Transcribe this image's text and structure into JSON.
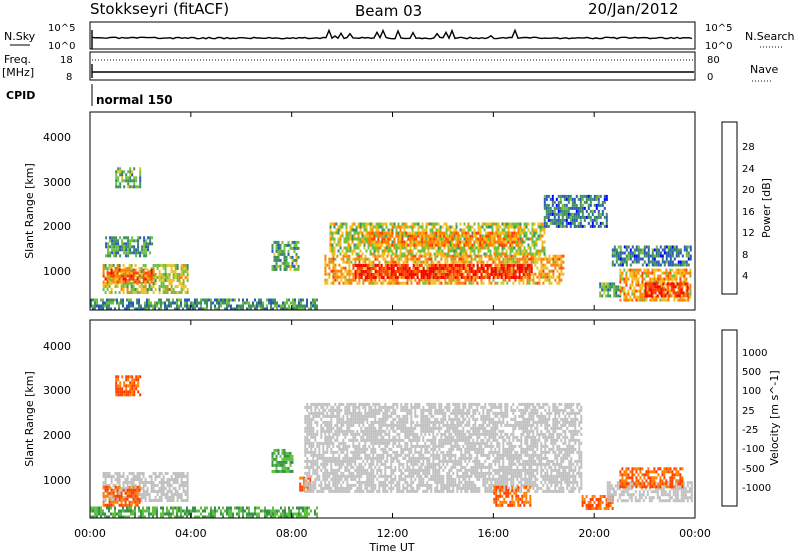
{
  "header": {
    "station": "Stokkseyri (fitACF)",
    "beam": "Beam 03",
    "date": "20/Jan/2012"
  },
  "panels": {
    "nsky_label": "N.Sky",
    "nsearch_label": "N.Search",
    "nsky_top": "10^5",
    "nsky_bottom": "10^0",
    "nsearch_top": "10^5",
    "nsearch_bottom": "10^0",
    "freq_label": "Freq.",
    "freq_unit": "[MHz]",
    "freq_top": "18",
    "freq_bottom": "8",
    "nave_label": "Nave",
    "nave_top": "80",
    "nave_bottom": "0",
    "cpid_label": "CPID",
    "cpid_value": "normal 150"
  },
  "axes": {
    "ylabel": "Slant Range [km]",
    "xlabel": "Time UT",
    "yticks": [
      "1000",
      "2000",
      "3000",
      "4000"
    ],
    "xticks": [
      "00:00",
      "04:00",
      "08:00",
      "12:00",
      "16:00",
      "20:00",
      "00:00"
    ]
  },
  "colorbars": {
    "power": {
      "label": "Power [dB]",
      "ticks": [
        "4",
        "8",
        "12",
        "16",
        "20",
        "24",
        "28"
      ],
      "colors": [
        "#0000ff",
        "#2c5ab8",
        "#3f8f5f",
        "#6fc040",
        "#f0c020",
        "#ff8000",
        "#ff4000",
        "#ff0000"
      ]
    },
    "velocity": {
      "label": "Velocity [m s^-1]",
      "ticks": [
        "1000",
        "500",
        "100",
        "25",
        "-25",
        "-100",
        "-500",
        "-1000"
      ],
      "colors": [
        "#1030c0",
        "#2a70a0",
        "#3a9050",
        "#60c040",
        "#c0c0c0",
        "#ffc060",
        "#ff8000",
        "#ff4000",
        "#ff0000"
      ]
    }
  },
  "chart_data": [
    {
      "type": "heatmap",
      "name": "Power [dB]",
      "x_range_hours": [
        0,
        24
      ],
      "y_range_km": [
        200,
        4500
      ],
      "blobs": [
        {
          "t0": 0.5,
          "t1": 3.9,
          "r0": 600,
          "r1": 1200,
          "v": 16
        },
        {
          "t0": 0.5,
          "t1": 2.5,
          "r0": 800,
          "r1": 1100,
          "v": 24
        },
        {
          "t0": 1.0,
          "t1": 2.0,
          "r0": 2900,
          "r1": 3300,
          "v": 12
        },
        {
          "t0": 0.6,
          "t1": 2.5,
          "r0": 1400,
          "r1": 1800,
          "v": 10
        },
        {
          "t0": 7.2,
          "t1": 8.3,
          "r0": 1100,
          "r1": 1700,
          "v": 12
        },
        {
          "t0": 9.3,
          "t1": 18.8,
          "r0": 800,
          "r1": 1400,
          "v": 20
        },
        {
          "t0": 10.5,
          "t1": 17.5,
          "r0": 900,
          "r1": 1200,
          "v": 28
        },
        {
          "t0": 9.5,
          "t1": 18.0,
          "r0": 1400,
          "r1": 2100,
          "v": 16
        },
        {
          "t0": 11.0,
          "t1": 17.0,
          "r0": 1600,
          "r1": 1900,
          "v": 22
        },
        {
          "t0": 18.0,
          "t1": 20.5,
          "r0": 2000,
          "r1": 2700,
          "v": 8
        },
        {
          "t0": 20.2,
          "t1": 21.0,
          "r0": 500,
          "r1": 800,
          "v": 12
        },
        {
          "t0": 21.0,
          "t1": 23.8,
          "r0": 400,
          "r1": 1100,
          "v": 20
        },
        {
          "t0": 22.0,
          "t1": 23.7,
          "r0": 500,
          "r1": 800,
          "v": 28
        },
        {
          "t0": 20.7,
          "t1": 23.8,
          "r0": 1200,
          "r1": 1600,
          "v": 8
        },
        {
          "t0": 0.0,
          "t1": 9.0,
          "r0": 200,
          "r1": 450,
          "v": 10
        }
      ]
    },
    {
      "type": "heatmap",
      "name": "Velocity [m s^-1]",
      "x_range_hours": [
        0,
        24
      ],
      "y_range_km": [
        200,
        4500
      ],
      "blobs": [
        {
          "t0": 0.5,
          "t1": 3.9,
          "r0": 600,
          "r1": 1200,
          "v": 0
        },
        {
          "t0": 0.5,
          "t1": 2.0,
          "r0": 500,
          "r1": 900,
          "v": -500
        },
        {
          "t0": 1.0,
          "t1": 2.0,
          "r0": 2900,
          "r1": 3300,
          "v": -500
        },
        {
          "t0": 7.2,
          "t1": 8.0,
          "r0": 1200,
          "r1": 1700,
          "v": 100
        },
        {
          "t0": 8.3,
          "t1": 8.7,
          "r0": 800,
          "r1": 1100,
          "v": -500
        },
        {
          "t0": 8.5,
          "t1": 19.5,
          "r0": 800,
          "r1": 2700,
          "v": 0
        },
        {
          "t0": 16.0,
          "t1": 17.5,
          "r0": 500,
          "r1": 900,
          "v": -500
        },
        {
          "t0": 19.5,
          "t1": 20.7,
          "r0": 400,
          "r1": 700,
          "v": -500
        },
        {
          "t0": 20.5,
          "t1": 23.9,
          "r0": 600,
          "r1": 1000,
          "v": 0
        },
        {
          "t0": 21.0,
          "t1": 23.5,
          "r0": 900,
          "r1": 1300,
          "v": -500
        },
        {
          "t0": 0.0,
          "t1": 9.0,
          "r0": 200,
          "r1": 450,
          "v": 100
        }
      ]
    }
  ]
}
